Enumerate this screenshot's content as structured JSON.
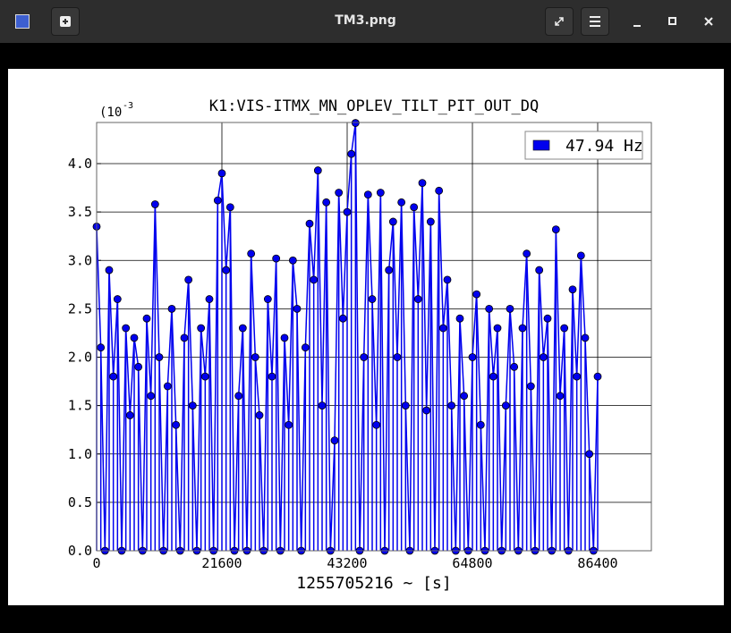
{
  "window": {
    "title": "TM3.png"
  },
  "chart_data": {
    "type": "stem",
    "title": "K1:VIS-ITMX_MN_OPLEV_TILT_PIT_OUT_DQ",
    "x_label": "1255705216 ~ [s]",
    "y_multiplier_base": "(10",
    "y_multiplier_exponent": "-3",
    "x": [
      0,
      720,
      1440,
      2160,
      2880,
      3600,
      4320,
      5040,
      5760,
      6480,
      7200,
      7920,
      8640,
      9360,
      10080,
      10800,
      11520,
      12240,
      12960,
      13680,
      14400,
      15120,
      15840,
      16560,
      17280,
      18000,
      18720,
      19440,
      20160,
      20880,
      21600,
      22320,
      23040,
      23760,
      24480,
      25200,
      25920,
      26640,
      27360,
      28080,
      28800,
      29520,
      30240,
      30960,
      31680,
      32400,
      33120,
      33840,
      34560,
      35280,
      36000,
      36720,
      37440,
      38160,
      38880,
      39600,
      40320,
      41040,
      41760,
      42480,
      43200,
      43920,
      44640,
      45360,
      46080,
      46800,
      47520,
      48240,
      48960,
      49680,
      50400,
      51120,
      51840,
      52560,
      53280,
      54000,
      54720,
      55440,
      56160,
      56880,
      57600,
      58320,
      59040,
      59760,
      60480,
      61200,
      61920,
      62640,
      63360,
      64080,
      64800,
      65520,
      66240,
      66960,
      67680,
      68400,
      69120,
      69840,
      70560,
      71280,
      72000,
      72720,
      73440,
      74160,
      74880,
      75600,
      76320,
      77040,
      77760,
      78480,
      79200,
      79920,
      80640,
      81360,
      82080,
      82800,
      83520,
      84240,
      84960,
      85680,
      86400
    ],
    "series": [
      {
        "name": "47.94 Hz",
        "color": "#0000ee",
        "values": [
          3.35,
          2.1,
          0,
          2.9,
          1.8,
          2.6,
          0,
          2.3,
          1.4,
          2.2,
          1.9,
          0,
          2.4,
          1.6,
          3.58,
          2.0,
          0,
          1.7,
          2.5,
          1.3,
          0,
          2.2,
          2.8,
          1.5,
          0,
          2.3,
          1.8,
          2.6,
          0,
          3.62,
          3.9,
          2.9,
          3.55,
          0,
          1.6,
          2.3,
          0,
          3.07,
          2.0,
          1.4,
          0,
          2.6,
          1.8,
          3.02,
          0,
          2.2,
          1.3,
          3.0,
          2.5,
          0,
          2.1,
          3.38,
          2.8,
          3.93,
          1.5,
          3.6,
          0,
          1.14,
          3.7,
          2.4,
          3.5,
          4.1,
          4.42,
          0,
          2.0,
          3.68,
          2.6,
          1.3,
          3.7,
          0,
          2.9,
          3.4,
          2.0,
          3.6,
          1.5,
          0,
          3.55,
          2.6,
          3.8,
          1.45,
          3.4,
          0,
          3.72,
          2.3,
          2.8,
          1.5,
          0,
          2.4,
          1.6,
          0,
          2.0,
          2.65,
          1.3,
          0,
          2.5,
          1.8,
          2.3,
          0,
          1.5,
          2.5,
          1.9,
          0,
          2.3,
          3.07,
          1.7,
          0,
          2.9,
          2.0,
          2.4,
          0,
          3.32,
          1.6,
          2.3,
          0,
          2.7,
          1.8,
          3.05,
          2.2,
          1.0,
          0,
          1.8
        ]
      }
    ],
    "xlim": [
      0,
      95657
    ],
    "ylim": [
      0,
      4.425
    ],
    "xticks": [
      0,
      21600,
      43200,
      64800,
      86400
    ],
    "yticks": [
      {
        "value": 0,
        "label": "0.0"
      },
      0.5,
      {
        "value": 1,
        "label": "1.0"
      },
      1.5,
      {
        "value": 2,
        "label": "2.0"
      },
      2.5,
      {
        "value": 3,
        "label": "3.0"
      },
      3.5,
      {
        "value": 4,
        "label": "4.0"
      }
    ],
    "grid": true,
    "legend": "upper right"
  }
}
